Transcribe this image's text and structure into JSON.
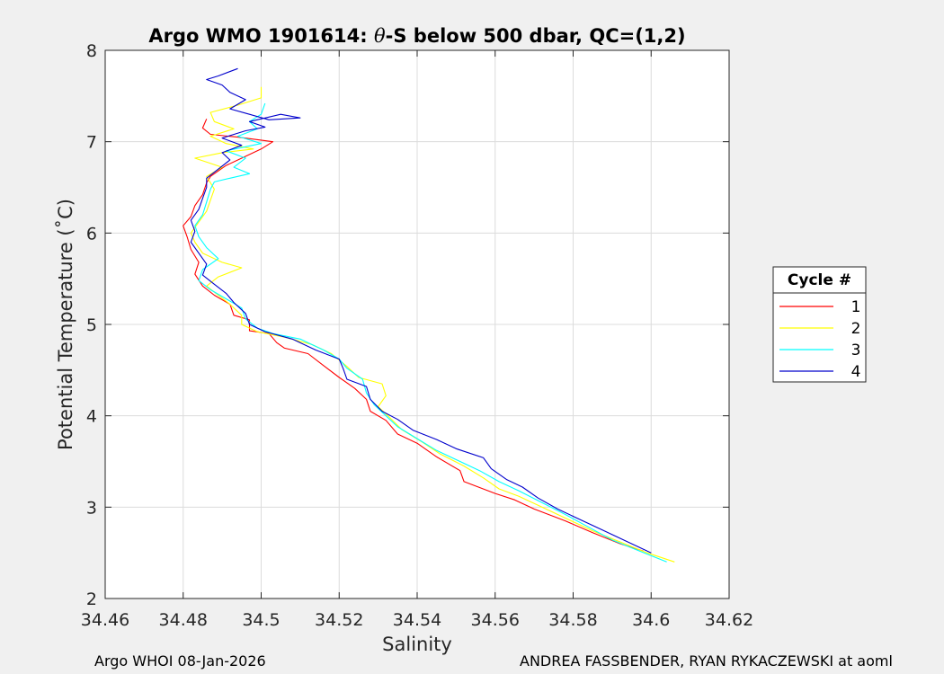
{
  "chart_data": {
    "type": "line",
    "title_pre": "Argo WMO 1901614: ",
    "title_theta": "θ",
    "title_post": "-S below 500 dbar,  QC=(1,2)",
    "xlabel": "Salinity",
    "ylabel": "Potential Temperature (˚C)",
    "xlim": [
      34.46,
      34.62
    ],
    "ylim": [
      2,
      8
    ],
    "xticks": [
      "34.46",
      "34.48",
      "34.5",
      "34.52",
      "34.54",
      "34.56",
      "34.58",
      "34.6",
      "34.62"
    ],
    "yticks": [
      "2",
      "3",
      "4",
      "5",
      "6",
      "7",
      "8"
    ],
    "grid": true,
    "legend": {
      "title": "Cycle #",
      "placement": "outside-right",
      "entries": [
        "1",
        "2",
        "3",
        "4"
      ]
    },
    "series": [
      {
        "name": "1",
        "color": "#ff0000",
        "points": [
          [
            34.598,
            2.52
          ],
          [
            34.592,
            2.6
          ],
          [
            34.585,
            2.72
          ],
          [
            34.578,
            2.85
          ],
          [
            34.57,
            2.98
          ],
          [
            34.565,
            3.08
          ],
          [
            34.56,
            3.15
          ],
          [
            34.552,
            3.28
          ],
          [
            34.551,
            3.4
          ],
          [
            34.545,
            3.55
          ],
          [
            34.54,
            3.7
          ],
          [
            34.535,
            3.8
          ],
          [
            34.532,
            3.95
          ],
          [
            34.528,
            4.05
          ],
          [
            34.527,
            4.18
          ],
          [
            34.524,
            4.3
          ],
          [
            34.52,
            4.42
          ],
          [
            34.516,
            4.55
          ],
          [
            34.512,
            4.68
          ],
          [
            34.506,
            4.74
          ],
          [
            34.504,
            4.8
          ],
          [
            34.502,
            4.9
          ],
          [
            34.497,
            4.93
          ],
          [
            34.497,
            5.05
          ],
          [
            34.493,
            5.1
          ],
          [
            34.492,
            5.22
          ],
          [
            34.488,
            5.32
          ],
          [
            34.485,
            5.42
          ],
          [
            34.483,
            5.55
          ],
          [
            34.484,
            5.68
          ],
          [
            34.482,
            5.82
          ],
          [
            34.481,
            5.96
          ],
          [
            34.48,
            6.08
          ],
          [
            34.482,
            6.18
          ],
          [
            34.483,
            6.3
          ],
          [
            34.485,
            6.42
          ],
          [
            34.486,
            6.55
          ],
          [
            34.487,
            6.62
          ],
          [
            34.491,
            6.74
          ],
          [
            34.495,
            6.82
          ],
          [
            34.5,
            6.92
          ],
          [
            34.503,
            7.0
          ],
          [
            34.494,
            7.05
          ],
          [
            34.487,
            7.08
          ],
          [
            34.485,
            7.15
          ],
          [
            34.486,
            7.25
          ]
        ]
      },
      {
        "name": "2",
        "color": "#ffff00",
        "points": [
          [
            34.606,
            2.4
          ],
          [
            34.599,
            2.5
          ],
          [
            34.592,
            2.62
          ],
          [
            34.585,
            2.74
          ],
          [
            34.578,
            2.88
          ],
          [
            34.572,
            3.0
          ],
          [
            34.566,
            3.12
          ],
          [
            34.561,
            3.2
          ],
          [
            34.557,
            3.32
          ],
          [
            34.552,
            3.45
          ],
          [
            34.546,
            3.58
          ],
          [
            34.541,
            3.72
          ],
          [
            34.536,
            3.85
          ],
          [
            34.533,
            3.98
          ],
          [
            34.53,
            4.1
          ],
          [
            34.532,
            4.22
          ],
          [
            34.531,
            4.35
          ],
          [
            34.525,
            4.42
          ],
          [
            34.522,
            4.54
          ],
          [
            34.518,
            4.68
          ],
          [
            34.513,
            4.78
          ],
          [
            34.506,
            4.86
          ],
          [
            34.499,
            4.92
          ],
          [
            34.495,
            5.0
          ],
          [
            34.495,
            5.1
          ],
          [
            34.492,
            5.22
          ],
          [
            34.489,
            5.32
          ],
          [
            34.486,
            5.42
          ],
          [
            34.489,
            5.52
          ],
          [
            34.495,
            5.62
          ],
          [
            34.49,
            5.68
          ],
          [
            34.485,
            5.78
          ],
          [
            34.483,
            5.9
          ],
          [
            34.482,
            6.0
          ],
          [
            34.484,
            6.12
          ],
          [
            34.486,
            6.24
          ],
          [
            34.487,
            6.36
          ],
          [
            34.488,
            6.48
          ],
          [
            34.486,
            6.62
          ],
          [
            34.49,
            6.72
          ],
          [
            34.483,
            6.82
          ],
          [
            34.49,
            6.88
          ],
          [
            34.498,
            6.92
          ],
          [
            34.491,
            6.98
          ],
          [
            34.487,
            7.06
          ],
          [
            34.493,
            7.14
          ],
          [
            34.488,
            7.22
          ],
          [
            34.487,
            7.32
          ],
          [
            34.494,
            7.4
          ],
          [
            34.5,
            7.48
          ],
          [
            34.5,
            7.6
          ]
        ]
      },
      {
        "name": "3",
        "color": "#00ffff",
        "points": [
          [
            34.604,
            2.4
          ],
          [
            34.597,
            2.52
          ],
          [
            34.59,
            2.64
          ],
          [
            34.584,
            2.78
          ],
          [
            34.578,
            2.92
          ],
          [
            34.572,
            3.05
          ],
          [
            34.566,
            3.18
          ],
          [
            34.561,
            3.28
          ],
          [
            34.556,
            3.4
          ],
          [
            34.551,
            3.5
          ],
          [
            34.545,
            3.62
          ],
          [
            34.54,
            3.75
          ],
          [
            34.535,
            3.88
          ],
          [
            34.532,
            4.0
          ],
          [
            34.529,
            4.12
          ],
          [
            34.527,
            4.25
          ],
          [
            34.526,
            4.4
          ],
          [
            34.522,
            4.52
          ],
          [
            34.52,
            4.62
          ],
          [
            34.516,
            4.72
          ],
          [
            34.51,
            4.84
          ],
          [
            34.503,
            4.9
          ],
          [
            34.499,
            4.96
          ],
          [
            34.496,
            5.06
          ],
          [
            34.495,
            5.18
          ],
          [
            34.491,
            5.28
          ],
          [
            34.487,
            5.38
          ],
          [
            34.484,
            5.48
          ],
          [
            34.485,
            5.6
          ],
          [
            34.489,
            5.72
          ],
          [
            34.486,
            5.84
          ],
          [
            34.484,
            5.96
          ],
          [
            34.483,
            6.08
          ],
          [
            34.485,
            6.2
          ],
          [
            34.486,
            6.34
          ],
          [
            34.487,
            6.48
          ],
          [
            34.488,
            6.56
          ],
          [
            34.492,
            6.6
          ],
          [
            34.497,
            6.65
          ],
          [
            34.493,
            6.72
          ],
          [
            34.496,
            6.82
          ],
          [
            34.491,
            6.9
          ],
          [
            34.5,
            6.98
          ],
          [
            34.494,
            7.06
          ],
          [
            34.499,
            7.14
          ],
          [
            34.497,
            7.22
          ],
          [
            34.5,
            7.3
          ],
          [
            34.501,
            7.42
          ]
        ]
      },
      {
        "name": "4",
        "color": "#0000cc",
        "points": [
          [
            34.6,
            2.5
          ],
          [
            34.594,
            2.62
          ],
          [
            34.588,
            2.74
          ],
          [
            34.582,
            2.86
          ],
          [
            34.576,
            2.98
          ],
          [
            34.571,
            3.1
          ],
          [
            34.567,
            3.22
          ],
          [
            34.563,
            3.3
          ],
          [
            34.559,
            3.42
          ],
          [
            34.557,
            3.54
          ],
          [
            34.55,
            3.64
          ],
          [
            34.545,
            3.74
          ],
          [
            34.539,
            3.84
          ],
          [
            34.535,
            3.96
          ],
          [
            34.531,
            4.05
          ],
          [
            34.528,
            4.18
          ],
          [
            34.527,
            4.32
          ],
          [
            34.522,
            4.4
          ],
          [
            34.521,
            4.52
          ],
          [
            34.52,
            4.62
          ],
          [
            34.514,
            4.72
          ],
          [
            34.508,
            4.84
          ],
          [
            34.501,
            4.92
          ],
          [
            34.497,
            5.0
          ],
          [
            34.496,
            5.12
          ],
          [
            34.493,
            5.24
          ],
          [
            34.491,
            5.34
          ],
          [
            34.488,
            5.44
          ],
          [
            34.485,
            5.54
          ],
          [
            34.486,
            5.66
          ],
          [
            34.484,
            5.78
          ],
          [
            34.482,
            5.9
          ],
          [
            34.483,
            6.02
          ],
          [
            34.482,
            6.14
          ],
          [
            34.484,
            6.26
          ],
          [
            34.485,
            6.38
          ],
          [
            34.486,
            6.5
          ],
          [
            34.486,
            6.6
          ],
          [
            34.489,
            6.7
          ],
          [
            34.492,
            6.8
          ],
          [
            34.49,
            6.88
          ],
          [
            34.495,
            6.96
          ],
          [
            34.49,
            7.04
          ],
          [
            34.496,
            7.12
          ],
          [
            34.501,
            7.16
          ],
          [
            34.497,
            7.22
          ],
          [
            34.505,
            7.3
          ],
          [
            34.51,
            7.26
          ],
          [
            34.502,
            7.24
          ],
          [
            34.497,
            7.3
          ],
          [
            34.492,
            7.36
          ],
          [
            34.496,
            7.46
          ],
          [
            34.492,
            7.54
          ],
          [
            34.49,
            7.62
          ],
          [
            34.486,
            7.68
          ],
          [
            34.489,
            7.72
          ],
          [
            34.494,
            7.8
          ]
        ]
      }
    ]
  },
  "footer": {
    "left": "Argo WHOI 08-Jan-2026",
    "right": "ANDREA FASSBENDER, RYAN RYKACZEWSKI at aoml"
  }
}
